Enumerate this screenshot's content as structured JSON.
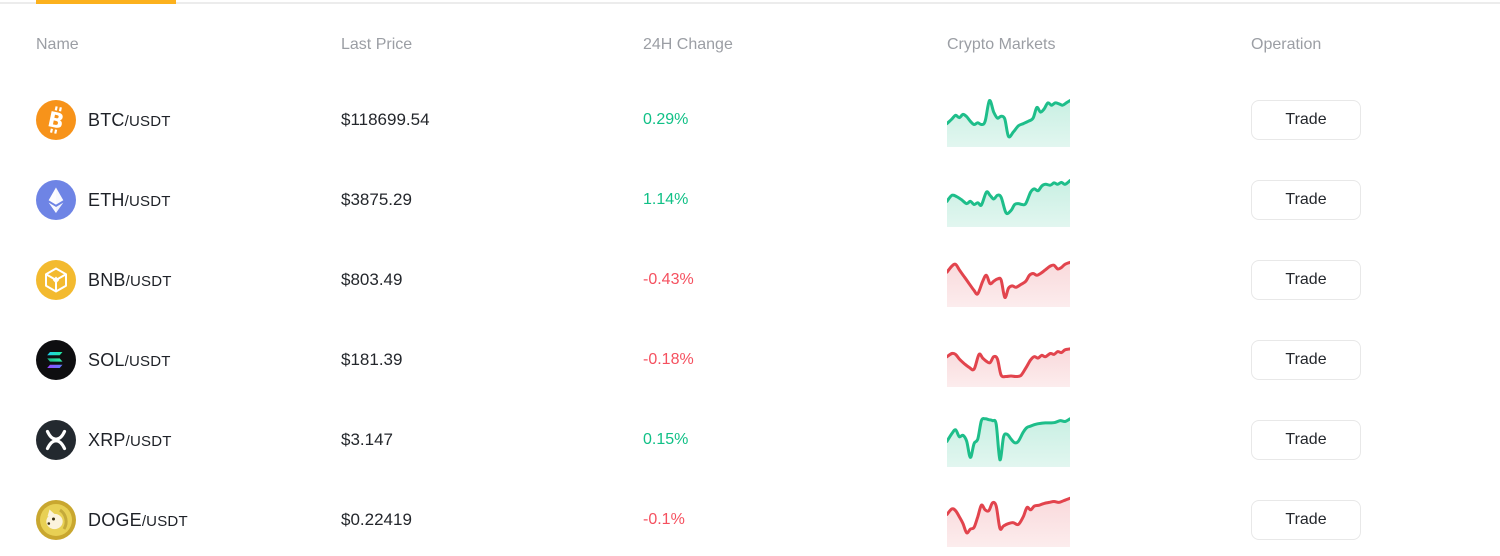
{
  "colors": {
    "accent": "#fcb11d",
    "up_text": "#10c086",
    "down_text": "#f5505f",
    "up_line": "#1ebe8a",
    "down_line": "#e2444d",
    "header_text": "#9b9ea4"
  },
  "table": {
    "columns": [
      "Name",
      "Last Price",
      "24H Change",
      "Crypto Markets",
      "Operation"
    ],
    "trade_label": "Trade",
    "rows": [
      {
        "symbol": "BTC",
        "pair_suffix": "/USDT",
        "price": "$118699.54",
        "change": "0.29%",
        "direction": "up",
        "icon": "btc-icon",
        "sparkline": [
          [
            0,
            0.6
          ],
          [
            0.04,
            0.5
          ],
          [
            0.07,
            0.42
          ],
          [
            0.1,
            0.47
          ],
          [
            0.13,
            0.4
          ],
          [
            0.16,
            0.45
          ],
          [
            0.19,
            0.55
          ],
          [
            0.22,
            0.62
          ],
          [
            0.25,
            0.58
          ],
          [
            0.28,
            0.62
          ],
          [
            0.31,
            0.55
          ],
          [
            0.345,
            0.1
          ],
          [
            0.38,
            0.35
          ],
          [
            0.41,
            0.48
          ],
          [
            0.44,
            0.44
          ],
          [
            0.47,
            0.5
          ],
          [
            0.5,
            0.88
          ],
          [
            0.54,
            0.78
          ],
          [
            0.58,
            0.65
          ],
          [
            0.62,
            0.6
          ],
          [
            0.66,
            0.55
          ],
          [
            0.7,
            0.48
          ],
          [
            0.73,
            0.25
          ],
          [
            0.76,
            0.35
          ],
          [
            0.79,
            0.28
          ],
          [
            0.82,
            0.15
          ],
          [
            0.85,
            0.2
          ],
          [
            0.88,
            0.15
          ],
          [
            0.91,
            0.17
          ],
          [
            0.94,
            0.2
          ],
          [
            0.97,
            0.15
          ],
          [
            1,
            0.1
          ]
        ]
      },
      {
        "symbol": "ETH",
        "pair_suffix": "/USDT",
        "price": "$3875.29",
        "change": "1.14%",
        "direction": "up",
        "icon": "eth-icon",
        "sparkline": [
          [
            0,
            0.55
          ],
          [
            0.04,
            0.42
          ],
          [
            0.08,
            0.45
          ],
          [
            0.12,
            0.52
          ],
          [
            0.16,
            0.6
          ],
          [
            0.19,
            0.55
          ],
          [
            0.22,
            0.62
          ],
          [
            0.25,
            0.58
          ],
          [
            0.28,
            0.63
          ],
          [
            0.32,
            0.35
          ],
          [
            0.35,
            0.42
          ],
          [
            0.38,
            0.5
          ],
          [
            0.41,
            0.42
          ],
          [
            0.44,
            0.46
          ],
          [
            0.48,
            0.8
          ],
          [
            0.52,
            0.75
          ],
          [
            0.55,
            0.62
          ],
          [
            0.58,
            0.6
          ],
          [
            0.61,
            0.62
          ],
          [
            0.64,
            0.6
          ],
          [
            0.68,
            0.35
          ],
          [
            0.71,
            0.28
          ],
          [
            0.74,
            0.32
          ],
          [
            0.77,
            0.22
          ],
          [
            0.8,
            0.18
          ],
          [
            0.84,
            0.2
          ],
          [
            0.87,
            0.15
          ],
          [
            0.9,
            0.18
          ],
          [
            0.93,
            0.14
          ],
          [
            0.96,
            0.18
          ],
          [
            1,
            0.1
          ]
        ]
      },
      {
        "symbol": "BNB",
        "pair_suffix": "/USDT",
        "price": "$803.49",
        "change": "-0.43%",
        "direction": "down",
        "icon": "bnb-icon",
        "sparkline": [
          [
            0,
            0.35
          ],
          [
            0.04,
            0.22
          ],
          [
            0.07,
            0.18
          ],
          [
            0.1,
            0.3
          ],
          [
            0.14,
            0.45
          ],
          [
            0.18,
            0.6
          ],
          [
            0.22,
            0.75
          ],
          [
            0.25,
            0.82
          ],
          [
            0.29,
            0.55
          ],
          [
            0.32,
            0.42
          ],
          [
            0.35,
            0.6
          ],
          [
            0.38,
            0.55
          ],
          [
            0.41,
            0.5
          ],
          [
            0.44,
            0.52
          ],
          [
            0.47,
            0.9
          ],
          [
            0.5,
            0.7
          ],
          [
            0.53,
            0.65
          ],
          [
            0.56,
            0.68
          ],
          [
            0.6,
            0.62
          ],
          [
            0.64,
            0.55
          ],
          [
            0.67,
            0.42
          ],
          [
            0.7,
            0.38
          ],
          [
            0.73,
            0.42
          ],
          [
            0.76,
            0.38
          ],
          [
            0.8,
            0.3
          ],
          [
            0.84,
            0.22
          ],
          [
            0.87,
            0.2
          ],
          [
            0.9,
            0.28
          ],
          [
            0.93,
            0.25
          ],
          [
            0.96,
            0.18
          ],
          [
            1,
            0.14
          ]
        ]
      },
      {
        "symbol": "SOL",
        "pair_suffix": "/USDT",
        "price": "$181.39",
        "change": "-0.18%",
        "direction": "down",
        "icon": "sol-icon",
        "sparkline": [
          [
            0,
            0.45
          ],
          [
            0.04,
            0.38
          ],
          [
            0.07,
            0.4
          ],
          [
            0.1,
            0.5
          ],
          [
            0.14,
            0.6
          ],
          [
            0.18,
            0.68
          ],
          [
            0.22,
            0.72
          ],
          [
            0.26,
            0.4
          ],
          [
            0.29,
            0.48
          ],
          [
            0.32,
            0.55
          ],
          [
            0.35,
            0.58
          ],
          [
            0.38,
            0.45
          ],
          [
            0.41,
            0.5
          ],
          [
            0.44,
            0.85
          ],
          [
            0.48,
            0.88
          ],
          [
            0.52,
            0.87
          ],
          [
            0.56,
            0.88
          ],
          [
            0.6,
            0.86
          ],
          [
            0.64,
            0.7
          ],
          [
            0.68,
            0.52
          ],
          [
            0.71,
            0.45
          ],
          [
            0.74,
            0.48
          ],
          [
            0.77,
            0.42
          ],
          [
            0.8,
            0.45
          ],
          [
            0.84,
            0.38
          ],
          [
            0.87,
            0.4
          ],
          [
            0.9,
            0.34
          ],
          [
            0.93,
            0.36
          ],
          [
            0.96,
            0.3
          ],
          [
            1,
            0.28
          ]
        ]
      },
      {
        "symbol": "XRP",
        "pair_suffix": "/USDT",
        "price": "$3.147",
        "change": "0.15%",
        "direction": "up",
        "icon": "xrp-icon",
        "sparkline": [
          [
            0,
            0.55
          ],
          [
            0.04,
            0.38
          ],
          [
            0.07,
            0.3
          ],
          [
            0.1,
            0.45
          ],
          [
            0.13,
            0.42
          ],
          [
            0.16,
            0.55
          ],
          [
            0.19,
            0.9
          ],
          [
            0.22,
            0.6
          ],
          [
            0.25,
            0.5
          ],
          [
            0.28,
            0.1
          ],
          [
            0.31,
            0.06
          ],
          [
            0.34,
            0.08
          ],
          [
            0.37,
            0.1
          ],
          [
            0.4,
            0.18
          ],
          [
            0.43,
            0.95
          ],
          [
            0.46,
            0.45
          ],
          [
            0.49,
            0.4
          ],
          [
            0.52,
            0.5
          ],
          [
            0.55,
            0.58
          ],
          [
            0.58,
            0.55
          ],
          [
            0.62,
            0.35
          ],
          [
            0.65,
            0.25
          ],
          [
            0.68,
            0.22
          ],
          [
            0.72,
            0.18
          ],
          [
            0.76,
            0.16
          ],
          [
            0.8,
            0.15
          ],
          [
            0.84,
            0.15
          ],
          [
            0.88,
            0.14
          ],
          [
            0.92,
            0.1
          ],
          [
            0.96,
            0.12
          ],
          [
            1,
            0.06
          ]
        ]
      },
      {
        "symbol": "DOGE",
        "pair_suffix": "/USDT",
        "price": "$0.22419",
        "change": "-0.1%",
        "direction": "down",
        "icon": "doge-icon",
        "sparkline": [
          [
            0,
            0.4
          ],
          [
            0.04,
            0.28
          ],
          [
            0.07,
            0.32
          ],
          [
            0.1,
            0.45
          ],
          [
            0.13,
            0.6
          ],
          [
            0.16,
            0.8
          ],
          [
            0.19,
            0.72
          ],
          [
            0.22,
            0.68
          ],
          [
            0.25,
            0.45
          ],
          [
            0.28,
            0.2
          ],
          [
            0.31,
            0.3
          ],
          [
            0.34,
            0.32
          ],
          [
            0.37,
            0.15
          ],
          [
            0.4,
            0.22
          ],
          [
            0.43,
            0.7
          ],
          [
            0.46,
            0.65
          ],
          [
            0.5,
            0.6
          ],
          [
            0.54,
            0.58
          ],
          [
            0.58,
            0.62
          ],
          [
            0.62,
            0.45
          ],
          [
            0.65,
            0.25
          ],
          [
            0.68,
            0.3
          ],
          [
            0.71,
            0.22
          ],
          [
            0.75,
            0.2
          ],
          [
            0.79,
            0.16
          ],
          [
            0.83,
            0.14
          ],
          [
            0.87,
            0.12
          ],
          [
            0.91,
            0.14
          ],
          [
            0.95,
            0.1
          ],
          [
            1,
            0.05
          ]
        ]
      }
    ]
  }
}
